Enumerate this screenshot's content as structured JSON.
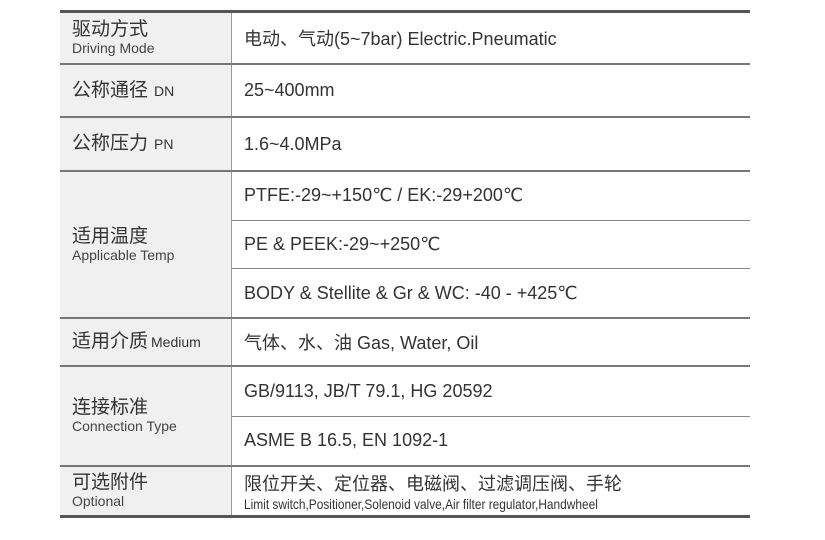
{
  "rows": [
    {
      "cn": "驱动方式",
      "en": "Driving Mode",
      "values": [
        "电动、气动(5~7bar) Electric.Pneumatic"
      ]
    },
    {
      "cn": "公称通径",
      "en": "DN",
      "values": [
        "25~400mm"
      ]
    },
    {
      "cn": "公称压力",
      "en": "PN",
      "values": [
        "1.6~4.0MPa"
      ]
    },
    {
      "cn": "适用温度",
      "en": "Applicable Temp",
      "values": [
        "PTFE:-29~+150℃ / EK:-29+200℃",
        "PE & PEEK:-29~+250℃",
        "BODY & Stellite & Gr & WC: -40 - +425℃"
      ]
    },
    {
      "cn": "适用介质",
      "en": "Medium",
      "values": [
        "气体、水、油 Gas, Water, Oil"
      ]
    },
    {
      "cn": "连接标准",
      "en": "Connection Type",
      "values": [
        "GB/9113, JB/T 79.1, HG 20592",
        "ASME B 16.5, EN 1092-1"
      ]
    },
    {
      "cn": "可选附件",
      "en": "Optional",
      "values": [
        "限位开关、定位器、电磁阀、过滤调压阀、手轮",
        "Limit switch,Positioner,Solenoid valve,Air filter regulator,Handwheel"
      ]
    }
  ]
}
